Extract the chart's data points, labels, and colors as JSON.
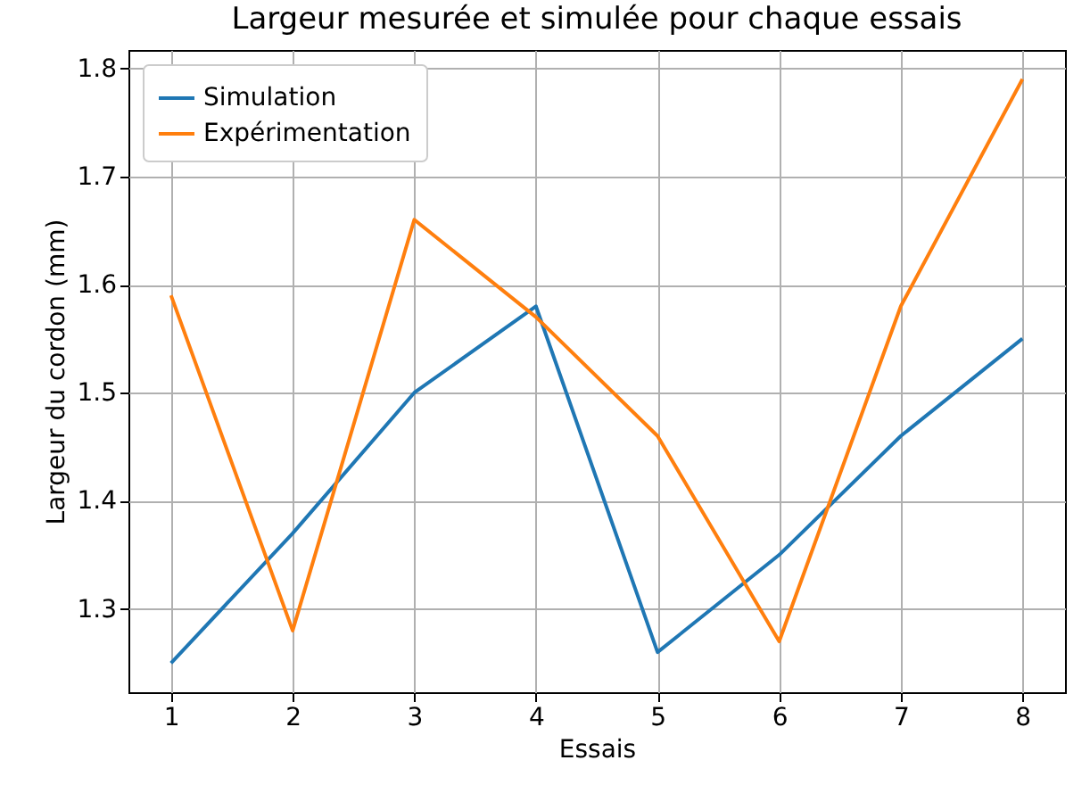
{
  "chart_data": {
    "type": "line",
    "title": "Largeur mesurée et simulée pour chaque essais",
    "xlabel": "Essais",
    "ylabel": "Largeur du cordon (mm)",
    "x": [
      1,
      2,
      3,
      4,
      5,
      6,
      7,
      8
    ],
    "series": [
      {
        "name": "Simulation",
        "color": "#1f77b4",
        "values": [
          1.25,
          1.37,
          1.5,
          1.58,
          1.26,
          1.35,
          1.46,
          1.55
        ]
      },
      {
        "name": "Expérimentation",
        "color": "#ff7f0e",
        "values": [
          1.59,
          1.28,
          1.66,
          1.57,
          1.46,
          1.27,
          1.58,
          1.79
        ]
      }
    ],
    "xlim": [
      0.65,
      8.35
    ],
    "xticks": [
      1,
      2,
      3,
      4,
      5,
      6,
      7,
      8
    ],
    "ylim": [
      1.223,
      1.817
    ],
    "yticks": [
      1.3,
      1.4,
      1.5,
      1.6,
      1.7,
      1.8
    ],
    "grid": true,
    "legend": "top left",
    "line_style": "solid",
    "marker": "none"
  }
}
